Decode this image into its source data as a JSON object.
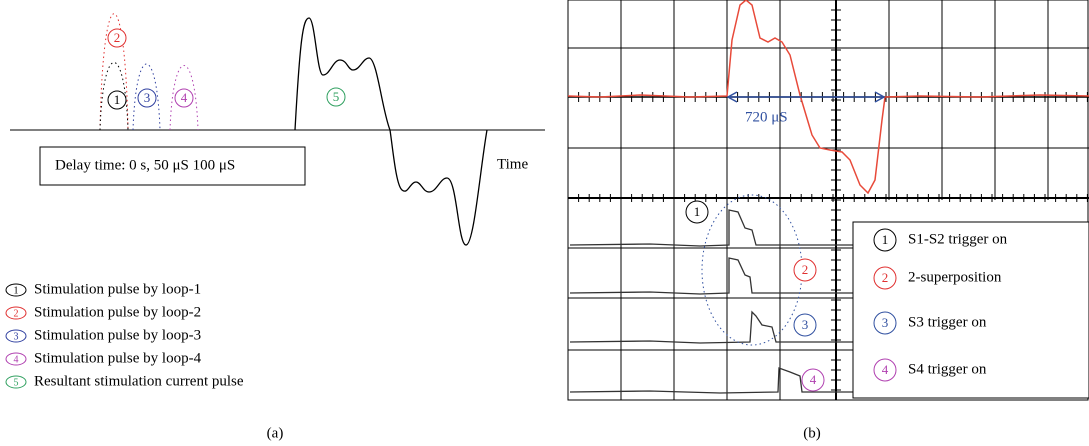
{
  "panel_a": {
    "pulse_markers": [
      "1",
      "2",
      "3",
      "4"
    ],
    "result_marker": "5",
    "delay_label": "Delay time: 0 s, 50 μS 100 μS",
    "time_label": "Time",
    "legend": [
      {
        "marker": "1",
        "text": "Stimulation pulse by loop-1"
      },
      {
        "marker": "2",
        "text": "Stimulation pulse by loop-2"
      },
      {
        "marker": "3",
        "text": "Stimulation pulse by loop-3"
      },
      {
        "marker": "4",
        "text": "Stimulation pulse by loop-4"
      },
      {
        "marker": "5",
        "text": "Resultant stimulation current pulse"
      }
    ],
    "caption": "(a)"
  },
  "panel_b": {
    "interval_label": "720 μS",
    "trace_markers": [
      "1",
      "2",
      "3",
      "4"
    ],
    "legend": [
      {
        "marker": "1",
        "text": "S1-S2 trigger on"
      },
      {
        "marker": "2",
        "text": "2-superposition"
      },
      {
        "marker": "3",
        "text": "S3 trigger on"
      },
      {
        "marker": "4",
        "text": "S4 trigger on"
      }
    ],
    "caption": "(b)"
  }
}
